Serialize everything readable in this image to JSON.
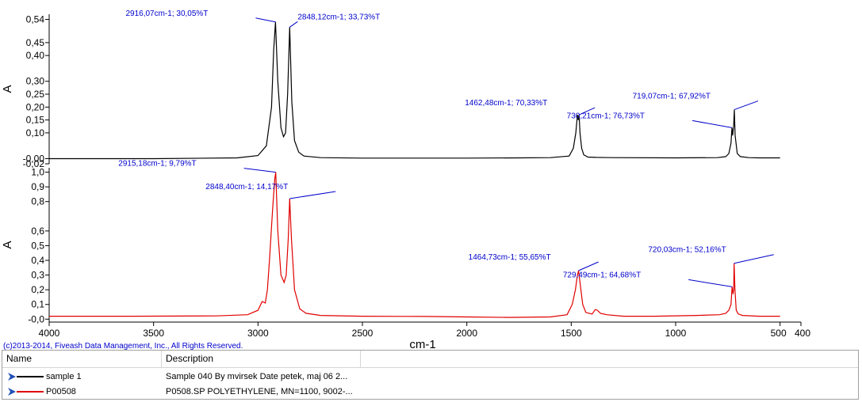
{
  "colors": {
    "sample1": "#000000",
    "reference": "#e00000",
    "annotation": "#0000cc"
  },
  "copyright": "(c)2013-2014, Fiveash Data Management, Inc., All Rights Reserved.",
  "legend": {
    "headers": [
      "Name",
      "Description"
    ],
    "rows": [
      {
        "name": "sample 1",
        "description": "Sample 040 By mvirsek Date petek, maj 06 2...",
        "color": "#000000",
        "icon": "arrow-icon"
      },
      {
        "name": "P00508",
        "description": "P0508.SP POLYETHYLENE, MN=1100, 9002-...",
        "color": "#e00000",
        "icon": "arrow-icon"
      }
    ]
  },
  "chart_data": [
    {
      "type": "line",
      "xlabel": "",
      "ylabel": "A",
      "xlim": [
        4000,
        400
      ],
      "ylim": [
        -0.02,
        0.56
      ],
      "yticks": [
        "0,54",
        "0,45",
        "0,40",
        "0,30",
        "0,25",
        "0,20",
        "0,15",
        "0,10",
        "-0,00",
        "-0,02"
      ],
      "ytick_values": [
        0.54,
        0.45,
        0.4,
        0.3,
        0.25,
        0.2,
        0.15,
        0.1,
        0.0,
        -0.02
      ],
      "series": [
        {
          "name": "sample 1",
          "x": [
            4000,
            3500,
            3100,
            3000,
            2960,
            2935,
            2925,
            2916.07,
            2905,
            2890,
            2878,
            2868,
            2858,
            2848.12,
            2838,
            2825,
            2805,
            2780,
            2700,
            2500,
            2300,
            2000,
            1750,
            1600,
            1510,
            1490,
            1478,
            1470,
            1466,
            1462.48,
            1458,
            1450,
            1440,
            1420,
            1380,
            1300,
            1000,
            800,
            760,
            745,
            735,
            732,
            730.21,
            727,
            722,
            719.07,
            715,
            705,
            690,
            650,
            600,
            500
          ],
          "y": [
            0.0,
            0.0,
            0.003,
            0.012,
            0.05,
            0.2,
            0.42,
            0.53,
            0.3,
            0.12,
            0.085,
            0.1,
            0.25,
            0.51,
            0.22,
            0.07,
            0.025,
            0.01,
            0.004,
            0.002,
            0.002,
            0.002,
            0.003,
            0.004,
            0.01,
            0.04,
            0.1,
            0.17,
            0.15,
            0.17,
            0.1,
            0.04,
            0.015,
            0.006,
            0.005,
            0.004,
            0.003,
            0.004,
            0.008,
            0.02,
            0.06,
            0.1,
            0.12,
            0.09,
            0.13,
            0.19,
            0.09,
            0.02,
            0.008,
            0.004,
            0.003,
            0.003
          ]
        }
      ],
      "annotations": [
        {
          "text": "2916,07cm-1; 30,05%T",
          "x": 2916.07,
          "y": 0.53
        },
        {
          "text": "2848,12cm-1; 33,73%T",
          "x": 2848.12,
          "y": 0.51
        },
        {
          "text": "1462,48cm-1; 70,33%T",
          "x": 1462.48,
          "y": 0.17
        },
        {
          "text": "730,21cm-1; 76,73%T",
          "x": 730.21,
          "y": 0.12
        },
        {
          "text": "719,07cm-1; 67,92%T",
          "x": 719.07,
          "y": 0.19
        }
      ]
    },
    {
      "type": "line",
      "xlabel": "cm-1",
      "ylabel": "A",
      "xlim": [
        4000,
        400
      ],
      "ylim": [
        -0.02,
        1.03
      ],
      "yticks": [
        "1,0",
        "0,9",
        "0,8",
        "0,6",
        "0,5",
        "0,4",
        "0,3",
        "0,2",
        "0,1",
        "-0,0"
      ],
      "ytick_values": [
        1.0,
        0.9,
        0.8,
        0.6,
        0.5,
        0.4,
        0.3,
        0.2,
        0.1,
        0.0
      ],
      "xticks": [
        "4000",
        "3500",
        "3000",
        "2500",
        "2000",
        "1500",
        "1000",
        "500",
        "400"
      ],
      "xtick_values": [
        4000,
        3500,
        3000,
        2500,
        2000,
        1500,
        1000,
        500,
        400
      ],
      "series": [
        {
          "name": "P00508",
          "x": [
            4000,
            3600,
            3200,
            3050,
            3000,
            2980,
            2965,
            2955,
            2945,
            2930,
            2920,
            2915.18,
            2905,
            2890,
            2875,
            2865,
            2855,
            2848.4,
            2840,
            2825,
            2800,
            2770,
            2700,
            2500,
            2200,
            2000,
            1800,
            1600,
            1520,
            1495,
            1480,
            1470,
            1464.73,
            1458,
            1445,
            1430,
            1400,
            1385,
            1375,
            1360,
            1330,
            1250,
            1100,
            900,
            790,
            760,
            745,
            735,
            729.49,
            725,
            722,
            720.03,
            716,
            710,
            700,
            680,
            600,
            500
          ],
          "y": [
            0.02,
            0.02,
            0.022,
            0.03,
            0.06,
            0.12,
            0.11,
            0.2,
            0.4,
            0.75,
            0.95,
            1.0,
            0.6,
            0.3,
            0.25,
            0.3,
            0.55,
            0.82,
            0.55,
            0.2,
            0.07,
            0.04,
            0.025,
            0.02,
            0.018,
            0.015,
            0.012,
            0.015,
            0.03,
            0.1,
            0.2,
            0.3,
            0.33,
            0.25,
            0.1,
            0.045,
            0.035,
            0.065,
            0.06,
            0.04,
            0.03,
            0.02,
            0.02,
            0.025,
            0.03,
            0.04,
            0.06,
            0.1,
            0.22,
            0.17,
            0.2,
            0.38,
            0.2,
            0.06,
            0.035,
            0.025,
            0.02,
            0.02
          ]
        }
      ],
      "annotations": [
        {
          "text": "2915,18cm-1; 9,79%T",
          "x": 2915.18,
          "y": 1.0
        },
        {
          "text": "2848,40cm-1; 14,17%T",
          "x": 2848.4,
          "y": 0.82
        },
        {
          "text": "1464,73cm-1; 55,65%T",
          "x": 1464.73,
          "y": 0.33
        },
        {
          "text": "729,49cm-1; 64,68%T",
          "x": 729.49,
          "y": 0.22
        },
        {
          "text": "720,03cm-1; 52,16%T",
          "x": 720.03,
          "y": 0.38
        }
      ]
    }
  ]
}
